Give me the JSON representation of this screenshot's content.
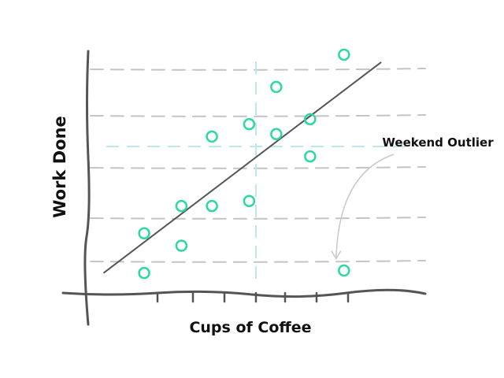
{
  "chart_data": {
    "type": "scatter",
    "title": "",
    "xlabel": "Cups of Coffee",
    "ylabel": "Work Done",
    "style": "hand-drawn sketch",
    "xlim": [
      0,
      10
    ],
    "ylim": [
      0,
      10
    ],
    "grid": "dashed horizontal lines",
    "colors": {
      "points": "#2ed8a0",
      "trend": "#555555",
      "grid": "#c4c4c4",
      "crosshair": "#bfe6ee",
      "axis": "#555555",
      "arrow": "#c8c8c8"
    },
    "points": [
      {
        "x": 1.7,
        "y": 0.9
      },
      {
        "x": 1.7,
        "y": 2.5
      },
      {
        "x": 2.8,
        "y": 2.0
      },
      {
        "x": 2.8,
        "y": 3.6
      },
      {
        "x": 3.7,
        "y": 3.6
      },
      {
        "x": 3.7,
        "y": 6.4
      },
      {
        "x": 4.8,
        "y": 3.8
      },
      {
        "x": 4.8,
        "y": 6.9
      },
      {
        "x": 5.6,
        "y": 6.5
      },
      {
        "x": 5.6,
        "y": 8.4
      },
      {
        "x": 6.6,
        "y": 5.6
      },
      {
        "x": 6.6,
        "y": 7.1
      },
      {
        "x": 7.6,
        "y": 1.0
      },
      {
        "x": 7.6,
        "y": 9.7
      }
    ],
    "trend_line": {
      "x": [
        0.5,
        8.7
      ],
      "y": [
        0.9,
        9.4
      ]
    },
    "crosshair": {
      "x": 5.0,
      "y": 6.0
    },
    "annotation": {
      "text": "Weekend Outlier",
      "points_to": {
        "x": 7.6,
        "y": 1.0
      }
    }
  }
}
